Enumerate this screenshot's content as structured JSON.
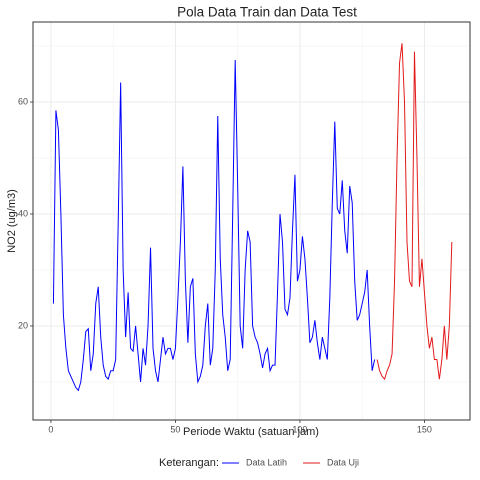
{
  "chart_data": {
    "type": "line",
    "title": "Pola Data Train dan Data Test",
    "x_label": "Periode Waktu (satuan jam)",
    "y_label": "NO2 (ug/m3)",
    "legend_title": "Keterangan:",
    "legend_position": "bottom",
    "grid": true,
    "xlim": [
      -7.2,
      168.3
    ],
    "ylim": [
      3.2,
      74.3
    ],
    "xticks": [
      0,
      50,
      100,
      150
    ],
    "yticks": [
      20,
      40,
      60
    ],
    "xminorticks": [
      25,
      75,
      125
    ],
    "yminorticks": [
      10,
      30,
      50,
      70
    ],
    "series": [
      {
        "name": "Data Latih",
        "color": "#0000ff",
        "x": [
          1,
          2,
          3,
          4,
          5,
          6,
          7,
          8,
          9,
          10,
          11,
          12,
          13,
          14,
          15,
          16,
          17,
          18,
          19,
          20,
          21,
          22,
          23,
          24,
          25,
          26,
          27,
          28,
          29,
          30,
          31,
          32,
          33,
          34,
          35,
          36,
          37,
          38,
          39,
          40,
          41,
          42,
          43,
          44,
          45,
          46,
          47,
          48,
          49,
          50,
          51,
          52,
          53,
          54,
          55,
          56,
          57,
          58,
          59,
          60,
          61,
          62,
          63,
          64,
          65,
          66,
          67,
          68,
          69,
          70,
          71,
          72,
          73,
          74,
          75,
          76,
          77,
          78,
          79,
          80,
          81,
          82,
          83,
          84,
          85,
          86,
          87,
          88,
          89,
          90,
          91,
          92,
          93,
          94,
          95,
          96,
          97,
          98,
          99,
          100,
          101,
          102,
          103,
          104,
          105,
          106,
          107,
          108,
          109,
          110,
          111,
          112,
          113,
          114,
          115,
          116,
          117,
          118,
          119,
          120,
          121,
          122,
          123,
          124,
          125,
          126,
          127,
          128,
          129,
          130
        ],
        "values": [
          24,
          58.5,
          55,
          40,
          22,
          16,
          12,
          11,
          10,
          9,
          8.5,
          10,
          14,
          19,
          19.5,
          12,
          15,
          24,
          27,
          18,
          13,
          11,
          10.5,
          12,
          12,
          14,
          38,
          63.5,
          30,
          18,
          26,
          16,
          15.5,
          20,
          15,
          10,
          16,
          13,
          20,
          34,
          16,
          12,
          10,
          14,
          18,
          15,
          16,
          16,
          14,
          16,
          25,
          35,
          48.5,
          28,
          17,
          27,
          28.5,
          15,
          10,
          11,
          13,
          20,
          24,
          13,
          16,
          30,
          57.5,
          32,
          22,
          18,
          12,
          14,
          40,
          67.5,
          45,
          20,
          16,
          30,
          37,
          35,
          20,
          18,
          17,
          15,
          12.5,
          15,
          16,
          12,
          13,
          13,
          26,
          40,
          35,
          23,
          22,
          25,
          37,
          47,
          28,
          30,
          36,
          32,
          25,
          17,
          18,
          21,
          17,
          14,
          18,
          16,
          14,
          25,
          42,
          56.5,
          41,
          40,
          46,
          37,
          33,
          45,
          42,
          28,
          21,
          22,
          24,
          26,
          30,
          20,
          12,
          14
        ]
      },
      {
        "name": "Data Uji",
        "color": "#e31a1c",
        "x": [
          131,
          132,
          133,
          134,
          135,
          136,
          137,
          138,
          139,
          140,
          141,
          142,
          143,
          144,
          145,
          146,
          147,
          148,
          149,
          150,
          151,
          152,
          153,
          154,
          155,
          156,
          157,
          158,
          159,
          160,
          161
        ],
        "values": [
          14,
          12,
          11,
          10.5,
          12,
          13,
          15,
          28,
          50,
          67,
          70.5,
          60,
          35,
          28,
          27,
          69,
          50,
          27,
          32,
          26,
          20,
          16,
          18,
          14,
          14,
          10.5,
          14,
          20,
          14,
          20,
          35
        ]
      }
    ]
  }
}
